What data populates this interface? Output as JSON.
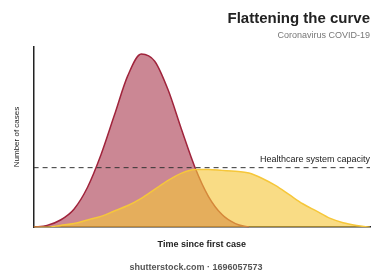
{
  "chart_data": {
    "type": "line",
    "title": "Flattening the curve",
    "subtitle": "Coronavirus COVID-19",
    "x_label": "Time since first case",
    "y_label": "Number of cases",
    "footer": "shutterstock.com · 1696057573",
    "xlim": [
      0,
      100
    ],
    "ylim": [
      0,
      100
    ],
    "xticks": [],
    "yticks": [],
    "grid": false,
    "tick_labels": false,
    "series": [
      {
        "color": "#a0243c",
        "x": [
          0,
          4,
          8,
          12,
          16,
          20,
          24,
          28,
          32,
          36,
          40,
          44,
          48,
          52,
          56,
          60,
          64
        ],
        "values": [
          0,
          1,
          4,
          10,
          22,
          40,
          62,
          84,
          96,
          92,
          76,
          54,
          33,
          17,
          7,
          2,
          0
        ]
      },
      {
        "color": "#f6c73a",
        "x": [
          0,
          4,
          8,
          12,
          16,
          20,
          24,
          28,
          32,
          36,
          40,
          44,
          48,
          52,
          56,
          60,
          64,
          68,
          72,
          76,
          80,
          84,
          88,
          92,
          96,
          100
        ],
        "values": [
          0,
          0,
          1,
          2,
          4,
          6,
          9,
          12,
          16,
          21,
          26,
          30,
          32,
          32,
          31.5,
          31,
          30,
          27,
          23,
          18,
          13,
          9,
          5,
          2.5,
          1,
          0
        ]
      }
    ],
    "annotations": [
      {
        "type": "hline",
        "y": 33,
        "label": "Healthcare system capacity",
        "line_style": "dashed"
      }
    ]
  }
}
